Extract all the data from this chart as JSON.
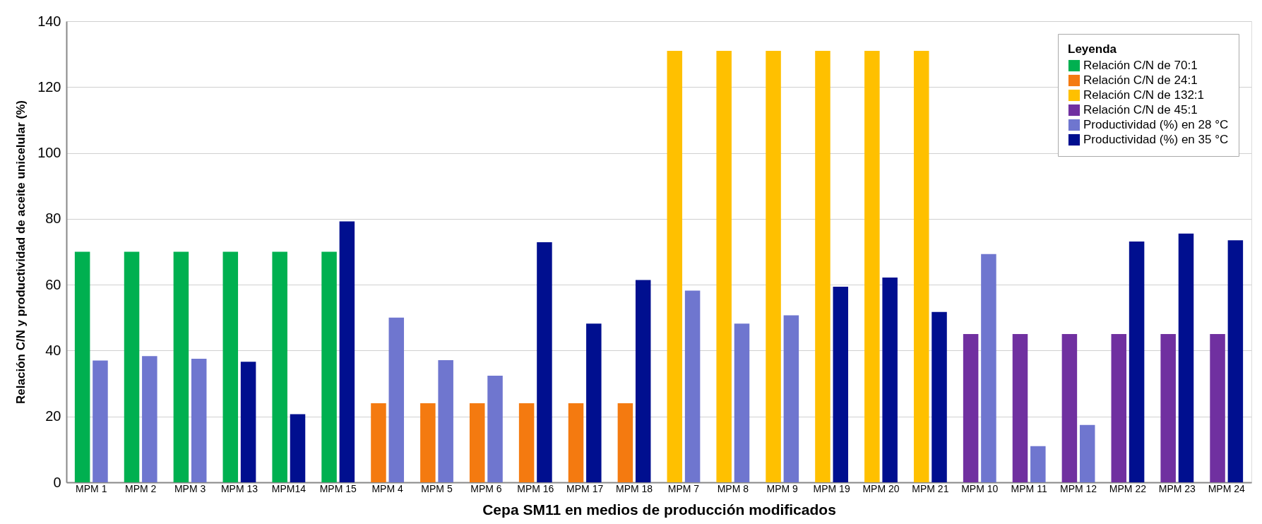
{
  "chart_data": {
    "type": "bar",
    "xlabel": "Cepa SM11 en medios de producción modificados",
    "ylabel": "Relación C/N y productividad de aceite unicelular (%)",
    "legend_title": "Leyenda",
    "categories": [
      "MPM 1",
      "MPM 2",
      "MPM 3",
      "MPM 13",
      "MPM14",
      "MPM 15",
      "MPM 4",
      "MPM 5",
      "MPM 6",
      "MPM 16",
      "MPM 17",
      "MPM 18",
      "MPM 7",
      "MPM 8",
      "MPM 9",
      "MPM 19",
      "MPM 20",
      "MPM 21",
      "MPM 10",
      "MPM 11",
      "MPM 12",
      "MPM 22",
      "MPM 23",
      "MPM 24"
    ],
    "series": [
      {
        "name": "Relación C/N de 70:1",
        "color": "#00b050",
        "values": [
          70,
          70,
          70,
          70,
          70,
          70,
          null,
          null,
          null,
          null,
          null,
          null,
          null,
          null,
          null,
          null,
          null,
          null,
          null,
          null,
          null,
          null,
          null,
          null
        ]
      },
      {
        "name": "Relación C/N de 24:1",
        "color": "#f47a10",
        "values": [
          null,
          null,
          null,
          null,
          null,
          null,
          24,
          24,
          24,
          24,
          24,
          24,
          null,
          null,
          null,
          null,
          null,
          null,
          null,
          null,
          null,
          null,
          null,
          null
        ]
      },
      {
        "name": "Relación C/N de 132:1",
        "color": "#ffc000",
        "values": [
          null,
          null,
          null,
          null,
          null,
          null,
          null,
          null,
          null,
          null,
          null,
          null,
          131,
          131,
          131,
          131,
          131,
          131,
          null,
          null,
          null,
          null,
          null,
          null
        ]
      },
      {
        "name": "Relación C/N de 45:1",
        "color": "#7030a0",
        "values": [
          null,
          null,
          null,
          null,
          null,
          null,
          null,
          null,
          null,
          null,
          null,
          null,
          null,
          null,
          null,
          null,
          null,
          null,
          45,
          45,
          45,
          45,
          45,
          45
        ]
      },
      {
        "name": "Productividad (%) en 28 °C",
        "color": "#6f76cf",
        "values": [
          37,
          38.3,
          37.5,
          null,
          null,
          null,
          50,
          37.1,
          32.4,
          null,
          null,
          null,
          58.2,
          48.2,
          50.7,
          null,
          null,
          null,
          69.3,
          11,
          17.4,
          null,
          null,
          null
        ]
      },
      {
        "name": "Productividad (%) en 35 °C",
        "color": "#000f8f",
        "values": [
          null,
          null,
          null,
          36.6,
          20.7,
          79.2,
          null,
          null,
          null,
          72.9,
          48.2,
          61.4,
          null,
          null,
          null,
          59.4,
          62.2,
          51.7,
          null,
          null,
          null,
          73.1,
          75.5,
          73.5
        ]
      }
    ],
    "ylim": [
      0,
      140
    ],
    "yticks": [
      0,
      20,
      40,
      60,
      80,
      100,
      120,
      140
    ],
    "grid": "y",
    "legend": "top right"
  }
}
